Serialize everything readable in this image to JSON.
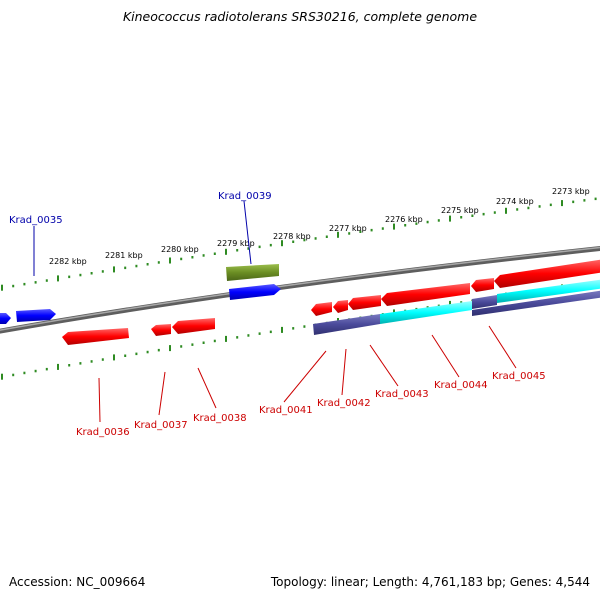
{
  "title": "Kineococcus radiotolerans SRS30216, complete genome",
  "footer": {
    "accession": "Accession: NC_009664",
    "topology": "Topology: linear; Length: 4,761,183 bp; Genes: 4,544"
  },
  "colors": {
    "genome": "#808080",
    "gene_forward_label": "#0000aa",
    "gene_reverse_label": "#cc0000",
    "forward_gene": "#0000ff",
    "reverse_gene": "#ff0000",
    "other_feature": "#6b8e23",
    "cds_reverse": "#4a4a9a",
    "cds_forward": "#00ffff",
    "ticks": "#2e8b22"
  },
  "scale_labels": [
    "2282 kbp",
    "2281 kbp",
    "2280 kbp",
    "2279 kbp",
    "2278 kbp",
    "2277 kbp",
    "2276 kbp",
    "2275 kbp",
    "2274 kbp",
    "2273 kbp"
  ],
  "gene_labels": {
    "top": [
      "Krad_0035",
      "Krad_0039"
    ],
    "bottom": [
      "Krad_0036",
      "Krad_0037",
      "Krad_0038",
      "Krad_0041",
      "Krad_0042",
      "Krad_0043",
      "Krad_0044",
      "Krad_0045"
    ]
  }
}
